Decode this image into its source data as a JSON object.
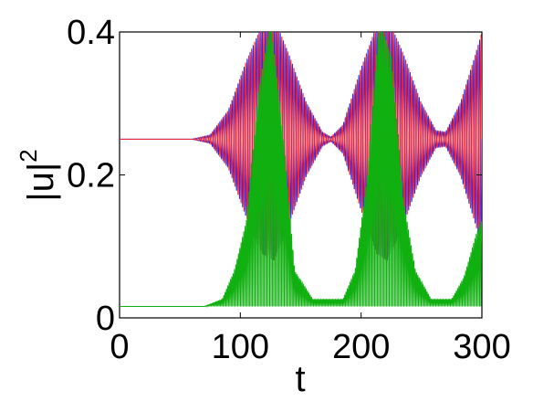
{
  "chart_data": {
    "type": "line",
    "xlabel": "t",
    "ylabel": "|u|",
    "ylabel_superscript": "2",
    "xlim": [
      0,
      300
    ],
    "ylim": [
      0,
      0.4
    ],
    "xticks": [
      0,
      100,
      200,
      300
    ],
    "xtick_labels": [
      "0",
      "100",
      "200",
      "300"
    ],
    "yticks": [
      0,
      0.2,
      0.4
    ],
    "ytick_labels": [
      "0",
      "0.2",
      "0.4"
    ],
    "grid": false,
    "legend": "none",
    "series": [
      {
        "color": "#2030ff",
        "baseline": 0.25,
        "oscillation_period": 2.5,
        "envelope": [
          [
            0,
            0
          ],
          [
            60,
            0
          ],
          [
            75,
            0.006
          ],
          [
            90,
            0.04
          ],
          [
            105,
            0.11
          ],
          [
            118,
            0.16
          ],
          [
            128,
            0.17
          ],
          [
            140,
            0.12
          ],
          [
            155,
            0.05
          ],
          [
            168,
            0.01
          ],
          [
            175,
            0.003
          ],
          [
            185,
            0.02
          ],
          [
            200,
            0.1
          ],
          [
            213,
            0.16
          ],
          [
            222,
            0.17
          ],
          [
            235,
            0.12
          ],
          [
            250,
            0.05
          ],
          [
            262,
            0.012
          ],
          [
            270,
            0.01
          ],
          [
            282,
            0.05
          ],
          [
            293,
            0.11
          ],
          [
            300,
            0.15
          ]
        ]
      },
      {
        "color": "#ff2020",
        "baseline": 0.25,
        "oscillation_period": 2.5,
        "phase": 3.14159,
        "envelope": [
          [
            0,
            0
          ],
          [
            60,
            0
          ],
          [
            75,
            0.006
          ],
          [
            90,
            0.04
          ],
          [
            105,
            0.11
          ],
          [
            118,
            0.16
          ],
          [
            128,
            0.17
          ],
          [
            140,
            0.12
          ],
          [
            155,
            0.05
          ],
          [
            168,
            0.01
          ],
          [
            175,
            0.003
          ],
          [
            185,
            0.02
          ],
          [
            200,
            0.1
          ],
          [
            213,
            0.16
          ],
          [
            222,
            0.17
          ],
          [
            235,
            0.12
          ],
          [
            250,
            0.05
          ],
          [
            262,
            0.012
          ],
          [
            270,
            0.01
          ],
          [
            282,
            0.05
          ],
          [
            293,
            0.11
          ],
          [
            300,
            0.15
          ]
        ]
      },
      {
        "color": "#10b010",
        "baseline": 0.016,
        "oscillation_period": 2.2,
        "envelope": [
          [
            0,
            0
          ],
          [
            70,
            0
          ],
          [
            85,
            0.01
          ],
          [
            95,
            0.05
          ],
          [
            105,
            0.12
          ],
          [
            115,
            0.3
          ],
          [
            125,
            0.4
          ],
          [
            135,
            0.25
          ],
          [
            145,
            0.05
          ],
          [
            160,
            0.01
          ],
          [
            185,
            0.01
          ],
          [
            195,
            0.05
          ],
          [
            205,
            0.18
          ],
          [
            215,
            0.4
          ],
          [
            225,
            0.35
          ],
          [
            235,
            0.15
          ],
          [
            245,
            0.05
          ],
          [
            258,
            0.01
          ],
          [
            275,
            0.01
          ],
          [
            285,
            0.04
          ],
          [
            295,
            0.1
          ],
          [
            300,
            0.12
          ]
        ]
      }
    ]
  }
}
